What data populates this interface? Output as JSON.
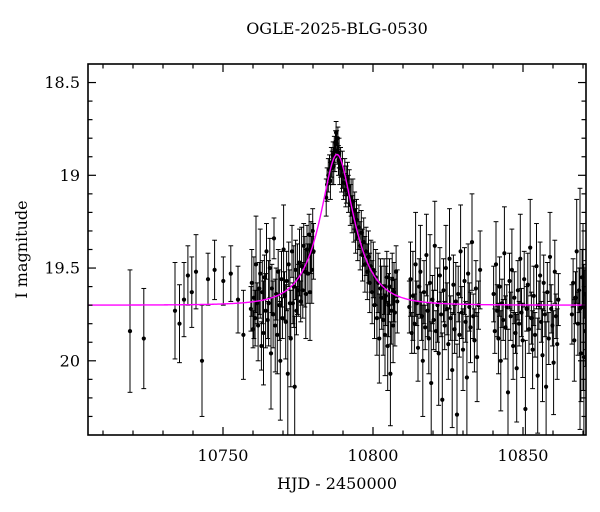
{
  "figure": {
    "title": "OGLE-2025-BLG-0530",
    "xlabel": "HJD - 2450000",
    "ylabel": "I magnitude"
  },
  "chart_data": {
    "type": "scatter",
    "subtype": "light-curve-with-errorbars-and-model",
    "title": "OGLE-2025-BLG-0530",
    "xlabel": "HJD - 2450000",
    "ylabel": "I magnitude",
    "x_range": [
      10705,
      10871
    ],
    "y_range_top_to_bottom": [
      18.4,
      20.4
    ],
    "y_axis_inverted": true,
    "x_major_ticks": [
      10750,
      10800,
      10850
    ],
    "x_major_tick_labels": [
      "10750",
      "10800",
      "10850"
    ],
    "x_minor_tick_step": 10,
    "y_major_ticks": [
      18.5,
      19,
      19.5,
      20
    ],
    "y_major_tick_labels": [
      "18.5",
      "19",
      "19.5",
      "20"
    ],
    "y_minor_tick_step": 0.1,
    "grid": false,
    "legend": null,
    "colors": {
      "points": "#000000",
      "error_bars": "#000000",
      "model_curve": "#ff00ff",
      "axes": "#000000",
      "text": "#000000",
      "background": "#ffffff"
    },
    "model": {
      "kind": "paczynski-microlensing",
      "t0": 10788.0,
      "tE": 9.5,
      "u0": 0.52,
      "baseline_mag": 19.7,
      "peak_mag": 18.89
    },
    "points_format": [
      "hjd_minus_2450000",
      "I_mag",
      "mag_error"
    ],
    "points": [
      [
        10719.0,
        19.84,
        0.33
      ],
      [
        10723.6,
        19.88,
        0.27
      ],
      [
        10734.0,
        19.73,
        0.26
      ],
      [
        10735.5,
        19.8,
        0.21
      ],
      [
        10737.0,
        19.67,
        0.2
      ],
      [
        10738.3,
        19.54,
        0.16
      ],
      [
        10739.6,
        19.63,
        0.19
      ],
      [
        10741.0,
        19.52,
        0.2
      ],
      [
        10743.0,
        20.0,
        0.3
      ],
      [
        10745.0,
        19.56,
        0.14
      ],
      [
        10747.2,
        19.51,
        0.16
      ],
      [
        10750.1,
        19.57,
        0.13
      ],
      [
        10752.6,
        19.53,
        0.15
      ],
      [
        10755.0,
        19.67,
        0.18
      ],
      [
        10756.8,
        19.86,
        0.24
      ],
      [
        10759.3,
        19.72,
        0.12
      ],
      [
        10759.6,
        19.58,
        0.18
      ],
      [
        10760.0,
        19.83,
        0.1
      ],
      [
        10760.3,
        19.66,
        0.22
      ],
      [
        10760.7,
        19.77,
        0.15
      ],
      [
        10761.0,
        19.48,
        0.26
      ],
      [
        10761.4,
        19.69,
        0.11
      ],
      [
        10761.7,
        19.81,
        0.19
      ],
      [
        10762.1,
        19.61,
        0.14
      ],
      [
        10762.4,
        19.53,
        0.24
      ],
      [
        10762.8,
        19.92,
        0.13
      ],
      [
        10763.1,
        19.63,
        0.17
      ],
      [
        10763.5,
        19.85,
        0.28
      ],
      [
        10763.8,
        19.55,
        0.12
      ],
      [
        10764.2,
        19.73,
        0.2
      ],
      [
        10764.5,
        19.41,
        0.15
      ],
      [
        10764.9,
        19.78,
        0.1
      ],
      [
        10765.2,
        19.69,
        0.23
      ],
      [
        10765.6,
        19.5,
        0.16
      ],
      [
        10766.0,
        19.96,
        0.3
      ],
      [
        10766.3,
        19.61,
        0.13
      ],
      [
        10766.7,
        19.75,
        0.18
      ],
      [
        10767.0,
        19.34,
        0.11
      ],
      [
        10767.4,
        19.81,
        0.25
      ],
      [
        10767.7,
        19.64,
        0.14
      ],
      [
        10768.1,
        19.86,
        0.21
      ],
      [
        10768.4,
        19.52,
        0.12
      ],
      [
        10768.8,
        19.7,
        0.19
      ],
      [
        10769.1,
        20.0,
        0.32
      ],
      [
        10769.5,
        19.56,
        0.15
      ],
      [
        10769.8,
        19.77,
        0.11
      ],
      [
        10770.2,
        19.4,
        0.24
      ],
      [
        10770.5,
        19.65,
        0.13
      ],
      [
        10770.9,
        19.79,
        0.2
      ],
      [
        10771.2,
        19.57,
        0.16
      ],
      [
        10771.6,
        20.07,
        0.35
      ],
      [
        10771.9,
        19.48,
        0.12
      ],
      [
        10772.3,
        19.69,
        0.18
      ],
      [
        10772.6,
        19.88,
        0.26
      ],
      [
        10773.0,
        19.41,
        0.14
      ],
      [
        10773.3,
        19.69,
        0.11
      ],
      [
        10773.6,
        19.6,
        0.22
      ],
      [
        10773.9,
        20.14,
        0.38
      ],
      [
        10774.2,
        19.51,
        0.16
      ],
      [
        10774.5,
        19.73,
        0.13
      ],
      [
        10774.8,
        19.56,
        0.19
      ],
      [
        10775.1,
        19.62,
        0.14
      ],
      [
        10775.5,
        19.47,
        0.18
      ],
      [
        10775.9,
        19.68,
        0.11
      ],
      [
        10776.2,
        19.49,
        0.21
      ],
      [
        10776.6,
        19.62,
        0.15
      ],
      [
        10776.9,
        19.38,
        0.12
      ],
      [
        10777.3,
        19.52,
        0.19
      ],
      [
        10777.6,
        19.64,
        0.24
      ],
      [
        10778.0,
        19.4,
        0.13
      ],
      [
        10778.3,
        19.53,
        0.16
      ],
      [
        10778.7,
        19.32,
        0.11
      ],
      [
        10779.0,
        19.63,
        0.26
      ],
      [
        10779.3,
        19.39,
        0.14
      ],
      [
        10779.6,
        19.51,
        0.18
      ],
      [
        10779.9,
        19.3,
        0.12
      ],
      [
        10780.2,
        19.41,
        0.15
      ],
      [
        10784.4,
        19.12,
        0.1
      ],
      [
        10784.7,
        19.05,
        0.09
      ],
      [
        10785.1,
        19.0,
        0.09
      ],
      [
        10785.5,
        18.97,
        0.08
      ],
      [
        10785.8,
        19.03,
        0.1
      ],
      [
        10786.1,
        18.93,
        0.08
      ],
      [
        10786.4,
        18.96,
        0.09
      ],
      [
        10786.7,
        18.89,
        0.07
      ],
      [
        10786.9,
        18.95,
        0.1
      ],
      [
        10787.1,
        18.86,
        0.07
      ],
      [
        10787.3,
        18.9,
        0.08
      ],
      [
        10787.5,
        18.82,
        0.06
      ],
      [
        10787.7,
        18.77,
        0.06
      ],
      [
        10787.9,
        18.83,
        0.07
      ],
      [
        10788.1,
        18.87,
        0.07
      ],
      [
        10788.3,
        18.8,
        0.06
      ],
      [
        10788.5,
        18.92,
        0.08
      ],
      [
        10788.7,
        18.88,
        0.08
      ],
      [
        10788.9,
        18.96,
        0.09
      ],
      [
        10789.2,
        18.93,
        0.08
      ],
      [
        10789.5,
        19.0,
        0.09
      ],
      [
        10789.8,
        18.97,
        0.1
      ],
      [
        10790.2,
        19.04,
        0.09
      ],
      [
        10790.6,
        19.01,
        0.1
      ],
      [
        10790.9,
        19.08,
        0.09
      ],
      [
        10791.1,
        19.05,
        0.1
      ],
      [
        10791.5,
        19.02,
        0.09
      ],
      [
        10791.8,
        19.1,
        0.1
      ],
      [
        10792.1,
        19.06,
        0.09
      ],
      [
        10792.4,
        19.16,
        0.11
      ],
      [
        10792.7,
        19.12,
        0.1
      ],
      [
        10793.0,
        19.21,
        0.1
      ],
      [
        10793.3,
        19.14,
        0.12
      ],
      [
        10793.6,
        19.25,
        0.11
      ],
      [
        10793.9,
        19.19,
        0.1
      ],
      [
        10794.2,
        19.3,
        0.12
      ],
      [
        10794.5,
        19.24,
        0.11
      ],
      [
        10794.9,
        19.33,
        0.13
      ],
      [
        10795.3,
        19.28,
        0.12
      ],
      [
        10795.7,
        19.38,
        0.13
      ],
      [
        10796.1,
        19.31,
        0.12
      ],
      [
        10796.5,
        19.43,
        0.14
      ],
      [
        10796.9,
        19.36,
        0.13
      ],
      [
        10797.3,
        19.48,
        0.15
      ],
      [
        10797.7,
        19.41,
        0.13
      ],
      [
        10798.1,
        19.52,
        0.15
      ],
      [
        10798.5,
        19.44,
        0.14
      ],
      [
        10798.9,
        19.58,
        0.16
      ],
      [
        10799.3,
        19.49,
        0.14
      ],
      [
        10799.7,
        19.63,
        0.17
      ],
      [
        10800.1,
        19.51,
        0.15
      ],
      [
        10800.5,
        19.7,
        0.18
      ],
      [
        10800.9,
        19.55,
        0.15
      ],
      [
        10801.3,
        19.77,
        0.2
      ],
      [
        10801.7,
        19.58,
        0.16
      ],
      [
        10802.1,
        19.88,
        0.24
      ],
      [
        10802.5,
        19.61,
        0.16
      ],
      [
        10802.9,
        19.66,
        0.17
      ],
      [
        10803.4,
        19.78,
        0.19
      ],
      [
        10803.7,
        19.6,
        0.15
      ],
      [
        10804.0,
        19.86,
        0.22
      ],
      [
        10804.3,
        19.65,
        0.16
      ],
      [
        10804.6,
        19.55,
        0.14
      ],
      [
        10804.9,
        19.92,
        0.24
      ],
      [
        10805.2,
        19.7,
        0.17
      ],
      [
        10805.5,
        19.6,
        0.15
      ],
      [
        10805.8,
        20.07,
        0.28
      ],
      [
        10806.1,
        19.73,
        0.18
      ],
      [
        10806.4,
        19.56,
        0.14
      ],
      [
        10806.7,
        19.81,
        0.2
      ],
      [
        10807.0,
        19.63,
        0.16
      ],
      [
        10807.3,
        19.74,
        0.18
      ],
      [
        10807.7,
        19.52,
        0.14
      ],
      [
        10808.1,
        19.68,
        0.17
      ],
      [
        10812.1,
        19.71,
        0.14
      ],
      [
        10812.5,
        19.56,
        0.2
      ],
      [
        10812.9,
        19.85,
        0.11
      ],
      [
        10813.3,
        19.65,
        0.24
      ],
      [
        10813.8,
        19.8,
        0.16
      ],
      [
        10814.2,
        19.48,
        0.28
      ],
      [
        10814.6,
        19.69,
        0.12
      ],
      [
        10815.0,
        19.93,
        0.18
      ],
      [
        10815.4,
        19.6,
        0.15
      ],
      [
        10815.8,
        19.52,
        0.25
      ],
      [
        10816.2,
        19.76,
        0.13
      ],
      [
        10816.6,
        20.0,
        0.3
      ],
      [
        10817.0,
        19.63,
        0.17
      ],
      [
        10817.4,
        19.82,
        0.12
      ],
      [
        10817.8,
        19.43,
        0.22
      ],
      [
        10818.2,
        19.73,
        0.14
      ],
      [
        10818.6,
        19.88,
        0.19
      ],
      [
        10819.0,
        19.58,
        0.26
      ],
      [
        10819.4,
        20.12,
        0.33
      ],
      [
        10819.8,
        19.67,
        0.13
      ],
      [
        10820.2,
        19.78,
        0.16
      ],
      [
        10820.6,
        19.38,
        0.24
      ],
      [
        10821.0,
        19.84,
        0.11
      ],
      [
        10821.5,
        19.7,
        0.2
      ],
      [
        10821.9,
        19.96,
        0.28
      ],
      [
        10822.3,
        19.54,
        0.15
      ],
      [
        10822.7,
        19.75,
        0.12
      ],
      [
        10823.1,
        20.21,
        0.36
      ],
      [
        10823.5,
        19.62,
        0.17
      ],
      [
        10823.9,
        19.81,
        0.13
      ],
      [
        10824.3,
        19.5,
        0.23
      ],
      [
        10824.7,
        19.72,
        0.14
      ],
      [
        10825.1,
        19.91,
        0.19
      ],
      [
        10825.5,
        19.45,
        0.27
      ],
      [
        10825.9,
        19.77,
        0.12
      ],
      [
        10826.4,
        20.05,
        0.31
      ],
      [
        10826.8,
        19.59,
        0.16
      ],
      [
        10827.2,
        19.83,
        0.13
      ],
      [
        10827.6,
        19.68,
        0.21
      ],
      [
        10828.0,
        20.29,
        0.38
      ],
      [
        10828.4,
        19.64,
        0.15
      ],
      [
        10828.8,
        19.86,
        0.12
      ],
      [
        10829.2,
        19.41,
        0.25
      ],
      [
        10829.6,
        19.74,
        0.14
      ],
      [
        10830.0,
        19.94,
        0.22
      ],
      [
        10830.5,
        19.57,
        0.18
      ],
      [
        10830.9,
        19.79,
        0.11
      ],
      [
        10831.3,
        20.09,
        0.33
      ],
      [
        10831.7,
        19.53,
        0.16
      ],
      [
        10832.1,
        19.71,
        0.13
      ],
      [
        10832.5,
        19.82,
        0.19
      ],
      [
        10833.0,
        19.36,
        0.26
      ],
      [
        10833.4,
        19.76,
        0.12
      ],
      [
        10833.8,
        19.89,
        0.17
      ],
      [
        10834.3,
        19.61,
        0.15
      ],
      [
        10834.7,
        19.98,
        0.24
      ],
      [
        10835.2,
        19.7,
        0.13
      ],
      [
        10835.7,
        19.51,
        0.21
      ],
      [
        10840.2,
        19.64,
        0.15
      ],
      [
        10840.6,
        19.84,
        0.12
      ],
      [
        10841.0,
        19.48,
        0.23
      ],
      [
        10841.4,
        19.73,
        0.14
      ],
      [
        10841.8,
        19.88,
        0.19
      ],
      [
        10842.2,
        19.6,
        0.16
      ],
      [
        10842.6,
        20.0,
        0.27
      ],
      [
        10843.0,
        19.69,
        0.13
      ],
      [
        10843.4,
        19.78,
        0.11
      ],
      [
        10843.8,
        19.42,
        0.25
      ],
      [
        10844.2,
        19.82,
        0.17
      ],
      [
        10844.6,
        19.71,
        0.12
      ],
      [
        10845.0,
        20.17,
        0.34
      ],
      [
        10845.5,
        19.57,
        0.15
      ],
      [
        10845.9,
        19.76,
        0.13
      ],
      [
        10846.3,
        19.51,
        0.22
      ],
      [
        10846.7,
        19.92,
        0.18
      ],
      [
        10847.1,
        19.66,
        0.14
      ],
      [
        10847.5,
        19.85,
        0.11
      ],
      [
        10847.9,
        20.04,
        0.29
      ],
      [
        10848.3,
        19.62,
        0.16
      ],
      [
        10848.7,
        19.8,
        0.12
      ],
      [
        10849.1,
        19.45,
        0.24
      ],
      [
        10849.5,
        19.74,
        0.13
      ],
      [
        10849.9,
        19.89,
        0.2
      ],
      [
        10850.4,
        19.56,
        0.15
      ],
      [
        10850.8,
        20.26,
        0.37
      ],
      [
        10851.2,
        19.72,
        0.12
      ],
      [
        10851.6,
        19.59,
        0.17
      ],
      [
        10852.0,
        19.83,
        0.13
      ],
      [
        10852.4,
        19.39,
        0.26
      ],
      [
        10852.8,
        19.77,
        0.14
      ],
      [
        10853.2,
        19.94,
        0.21
      ],
      [
        10853.6,
        19.65,
        0.16
      ],
      [
        10854.0,
        19.86,
        0.12
      ],
      [
        10854.5,
        19.49,
        0.23
      ],
      [
        10854.9,
        20.08,
        0.31
      ],
      [
        10855.3,
        19.7,
        0.13
      ],
      [
        10855.7,
        19.54,
        0.18
      ],
      [
        10856.1,
        19.79,
        0.11
      ],
      [
        10856.5,
        19.97,
        0.25
      ],
      [
        10856.9,
        19.58,
        0.15
      ],
      [
        10857.3,
        19.75,
        0.12
      ],
      [
        10857.7,
        20.14,
        0.35
      ],
      [
        10858.1,
        19.63,
        0.16
      ],
      [
        10858.6,
        19.88,
        0.14
      ],
      [
        10859.0,
        19.44,
        0.24
      ],
      [
        10859.4,
        19.72,
        0.13
      ],
      [
        10859.8,
        19.81,
        0.11
      ],
      [
        10860.2,
        20.01,
        0.28
      ],
      [
        10860.6,
        19.52,
        0.17
      ],
      [
        10861.0,
        19.76,
        0.12
      ],
      [
        10861.4,
        19.91,
        0.19
      ],
      [
        10861.8,
        19.67,
        0.14
      ],
      [
        10866.3,
        19.75,
        0.16
      ],
      [
        10866.7,
        19.58,
        0.13
      ],
      [
        10867.1,
        19.89,
        0.22
      ],
      [
        10867.5,
        19.66,
        0.14
      ],
      [
        10867.9,
        19.41,
        0.28
      ],
      [
        10868.3,
        19.8,
        0.17
      ],
      [
        10868.7,
        19.62,
        0.12
      ],
      [
        10869.0,
        19.72,
        0.65
      ],
      [
        10869.3,
        19.96,
        0.26
      ],
      [
        10869.7,
        19.55,
        0.15
      ],
      [
        10870.0,
        19.71,
        0.45
      ],
      [
        10870.3,
        19.98,
        0.5
      ],
      [
        10870.6,
        19.64,
        0.13
      ],
      [
        10870.8,
        19.84,
        0.19
      ],
      [
        10871.0,
        19.7,
        0.24
      ]
    ]
  }
}
